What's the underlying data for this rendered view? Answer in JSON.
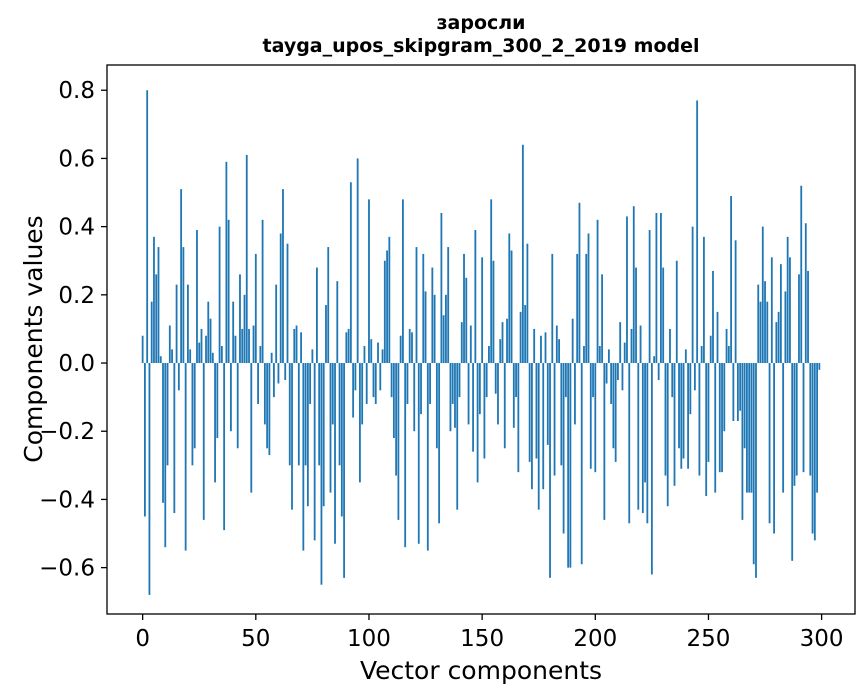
{
  "chart_data": {
    "type": "bar",
    "title": "заросли",
    "subtitle": "tayga_upos_skipgram_300_2_2019 model",
    "xlabel": "Vector components",
    "ylabel": "Components values",
    "x_ticks": [
      0,
      50,
      100,
      150,
      200,
      250,
      300
    ],
    "x_tick_labels": [
      "0",
      "50",
      "100",
      "150",
      "200",
      "250",
      "300"
    ],
    "y_ticks": [
      0.8,
      0.6,
      0.4,
      0.2,
      0.0,
      -0.2,
      -0.4,
      -0.6
    ],
    "y_tick_labels": [
      "0.8",
      "0.6",
      "0.4",
      "0.2",
      "0.0",
      "−0.2",
      "−0.4",
      "−0.6"
    ],
    "xlim": [
      -15.75,
      314.75
    ],
    "ylim": [
      -0.736,
      0.874
    ],
    "grid": false,
    "legend_position": "none",
    "bar_color": "#1f77b4",
    "spine_color": "#000000",
    "n_components": 300,
    "values": [
      0.08,
      -0.45,
      0.8,
      -0.68,
      0.18,
      0.37,
      0.26,
      0.34,
      0.02,
      -0.41,
      -0.54,
      -0.3,
      0.11,
      0.04,
      -0.44,
      0.23,
      -0.08,
      0.51,
      0.34,
      -0.55,
      0.23,
      0.04,
      -0.3,
      -0.25,
      0.39,
      0.06,
      0.1,
      -0.46,
      0.08,
      0.18,
      0.13,
      0.03,
      -0.35,
      -0.22,
      0.4,
      0.05,
      -0.49,
      0.59,
      0.42,
      -0.2,
      0.18,
      0.08,
      -0.25,
      0.26,
      0.1,
      0.2,
      0.61,
      0.1,
      -0.38,
      0.11,
      0.32,
      -0.12,
      0.05,
      0.42,
      -0.18,
      -0.25,
      -0.27,
      0.03,
      -0.1,
      0.23,
      -0.06,
      0.38,
      0.51,
      -0.05,
      0.35,
      -0.3,
      -0.43,
      0.1,
      0.11,
      -0.3,
      0.09,
      -0.55,
      -0.3,
      -0.42,
      -0.12,
      0.04,
      -0.52,
      0.28,
      -0.3,
      -0.65,
      -0.42,
      0.17,
      0.34,
      -0.38,
      -0.18,
      -0.53,
      0.24,
      -0.3,
      -0.45,
      -0.63,
      0.09,
      0.1,
      0.53,
      -0.16,
      -0.08,
      0.6,
      -0.35,
      -0.18,
      0.05,
      -0.12,
      0.48,
      0.07,
      -0.1,
      -0.12,
      0.06,
      -0.08,
      0.04,
      0.3,
      0.33,
      0.37,
      -0.1,
      -0.22,
      -0.33,
      -0.46,
      0.08,
      0.48,
      -0.54,
      -0.12,
      0.1,
      0.09,
      -0.2,
      0.34,
      -0.53,
      -0.15,
      0.32,
      0.21,
      -0.55,
      -0.12,
      0.28,
      0.2,
      -0.25,
      -0.47,
      0.44,
      0.14,
      0.2,
      0.34,
      -0.2,
      -0.12,
      -0.19,
      -0.43,
      -0.1,
      0.12,
      0.32,
      0.25,
      -0.18,
      0.11,
      -0.26,
      0.39,
      -0.35,
      -0.15,
      0.31,
      -0.28,
      -0.1,
      0.05,
      0.48,
      0.3,
      -0.09,
      -0.18,
      0.07,
      0.12,
      -0.25,
      0.13,
      0.38,
      0.33,
      -0.19,
      -0.1,
      -0.32,
      0.15,
      0.64,
      0.17,
      0.35,
      -0.29,
      -0.37,
      0.1,
      -0.28,
      -0.43,
      0.08,
      -0.37,
      0.09,
      -0.24,
      -0.63,
      0.32,
      -0.33,
      0.11,
      0.07,
      -0.3,
      -0.5,
      -0.1,
      -0.6,
      -0.6,
      0.13,
      -0.18,
      0.32,
      0.47,
      -0.59,
      0.05,
      0.32,
      0.38,
      -0.31,
      -0.1,
      -0.32,
      0.42,
      0.05,
      0.26,
      -0.46,
      -0.06,
      0.04,
      -0.12,
      -0.25,
      -0.29,
      -0.05,
      0.12,
      -0.08,
      0.06,
      0.43,
      -0.47,
      0.1,
      0.46,
      0.28,
      -0.43,
      0.11,
      -0.44,
      -0.35,
      -0.47,
      0.39,
      -0.62,
      0.02,
      0.44,
      -0.05,
      0.44,
      0.28,
      -0.33,
      -0.42,
      0.1,
      -0.1,
      -0.36,
      0.3,
      -0.25,
      -0.31,
      -0.28,
      0.04,
      -0.31,
      -0.15,
      0.4,
      -0.08,
      0.77,
      -0.33,
      0.05,
      0.37,
      -0.39,
      -0.29,
      0.08,
      0.27,
      -0.38,
      0.15,
      -0.32,
      -0.32,
      -0.2,
      0.1,
      0.05,
      0.49,
      -0.17,
      0.36,
      -0.17,
      -0.14,
      -0.46,
      -0.25,
      -0.38,
      -0.38,
      -0.38,
      -0.59,
      -0.63,
      0.23,
      0.18,
      0.4,
      0.24,
      0.18,
      -0.47,
      0.31,
      -0.5,
      0.12,
      0.15,
      0.29,
      -0.38,
      0.21,
      0.37,
      0.31,
      -0.58,
      -0.36,
      -0.33,
      0.26,
      0.52,
      -0.32,
      0.41,
      0.27,
      -0.33,
      -0.5,
      -0.52,
      -0.38,
      -0.02
    ]
  }
}
